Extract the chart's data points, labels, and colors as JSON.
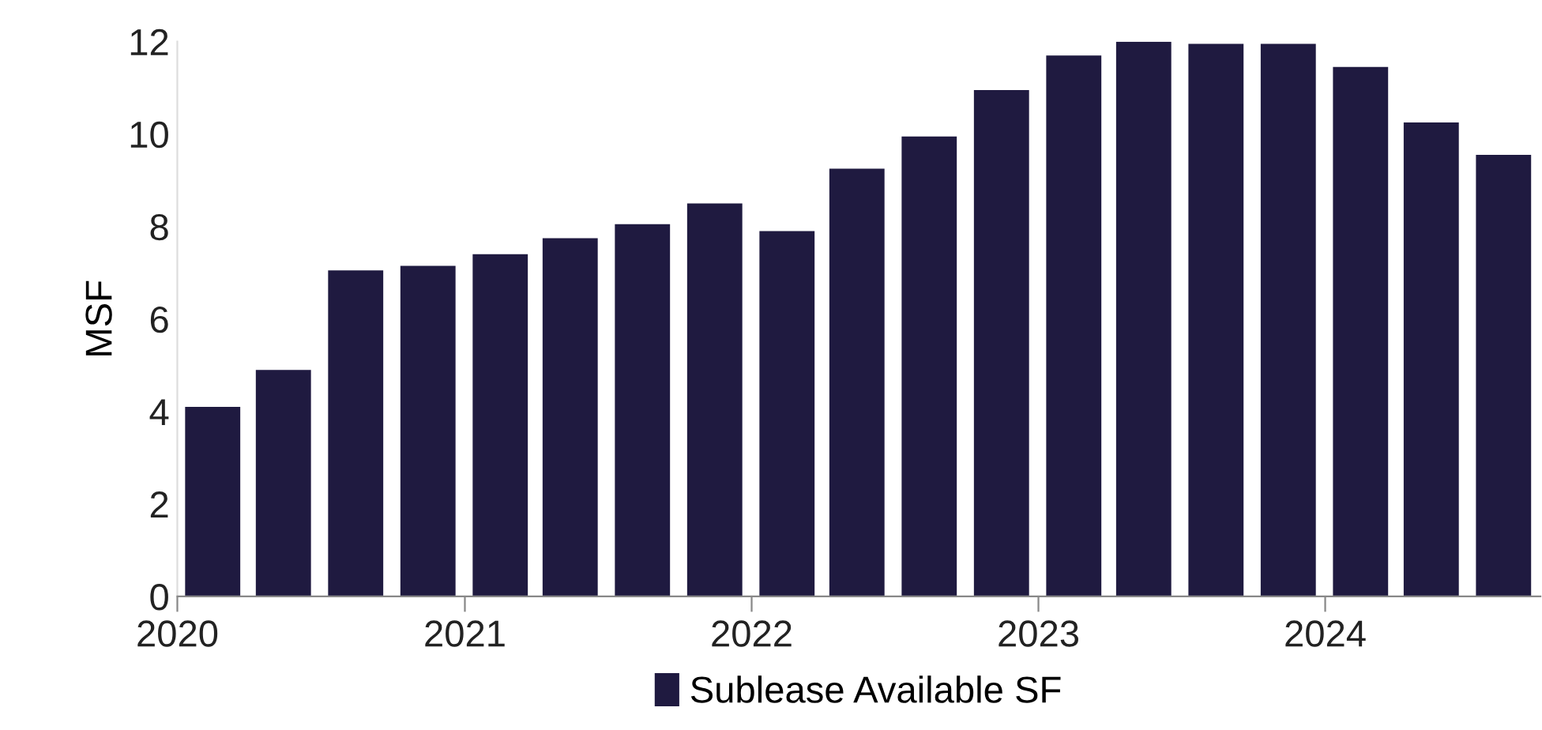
{
  "chart_data": {
    "type": "bar",
    "ylabel": "MSF",
    "x": [
      "2020-02-15",
      "2020-05-15",
      "2020-08-15",
      "2020-11-15",
      "2021-02-15",
      "2021-05-15",
      "2021-08-15",
      "2021-11-15",
      "2022-02-15",
      "2022-05-15",
      "2022-08-15",
      "2022-11-15",
      "2023-02-15",
      "2023-05-15",
      "2023-08-15",
      "2023-11-15",
      "2024-02-15",
      "2024-05-15",
      "2024-08-15"
    ],
    "series": [
      {
        "name": "Sublease Available SF",
        "color": "#1f1a40",
        "values": [
          4.1,
          4.9,
          7.05,
          7.15,
          7.4,
          7.75,
          8.05,
          8.5,
          7.9,
          9.25,
          9.95,
          10.95,
          11.7,
          12.0,
          11.95,
          11.95,
          11.45,
          10.25,
          9.55
        ]
      }
    ],
    "xlim": [
      "2020-01-01",
      "2024-10-01"
    ],
    "xticks": [
      {
        "value": "2020-01-01",
        "label": "2020"
      },
      {
        "value": "2021-01-01",
        "label": "2021"
      },
      {
        "value": "2022-01-01",
        "label": "2022"
      },
      {
        "value": "2023-01-01",
        "label": "2023"
      },
      {
        "value": "2024-01-01",
        "label": "2024"
      }
    ],
    "ylim": [
      0,
      12
    ],
    "yticks": [
      0,
      2,
      4,
      6,
      8,
      10,
      12
    ],
    "grid": false,
    "legend": "bottom"
  }
}
